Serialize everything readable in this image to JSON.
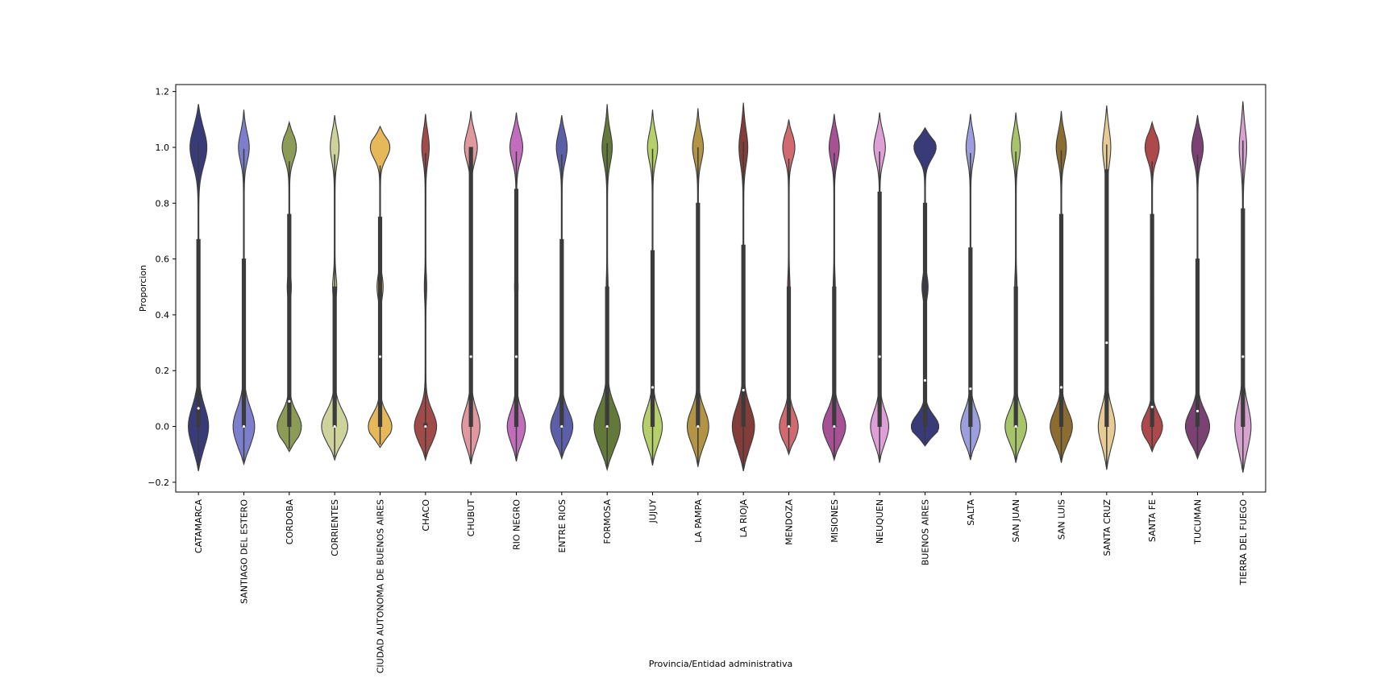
{
  "chart_data": {
    "type": "violin",
    "xlabel": "Provincia/Entidad administrativa",
    "ylabel": "Proporcion",
    "ylim": [
      -0.235,
      1.225
    ],
    "yticks": [
      -0.2,
      0.0,
      0.2,
      0.4,
      0.6,
      0.8,
      1.0,
      1.2
    ],
    "ytick_labels": [
      "−0.2",
      "0.0",
      "0.2",
      "0.4",
      "0.6",
      "0.8",
      "1.0",
      "1.2"
    ],
    "grid": false,
    "categories": [
      "CATAMARCA",
      "SANTIAGO DEL ESTERO",
      "CORDOBA",
      "CORRIENTES",
      "CIUDAD AUTONOMA DE BUENOS AIRES",
      "CHACO",
      "CHUBUT",
      "RIO NEGRO",
      "ENTRE RIOS",
      "FORMOSA",
      "JUJUY",
      "LA PAMPA",
      "LA RIOJA",
      "MENDOZA",
      "MISIONES",
      "NEUQUEN",
      "BUENOS AIRES",
      "SALTA",
      "SAN JUAN",
      "SAN LUIS",
      "SANTA CRUZ",
      "SANTA FE",
      "TUCUMAN",
      "TIERRA DEL FUEGO"
    ],
    "colors": [
      "#393b79",
      "#7b7fcc",
      "#8c9c56",
      "#cdd39a",
      "#e7b85a",
      "#a14a4a",
      "#e0989e",
      "#c26dbc",
      "#5b5fa8",
      "#637939",
      "#b5cf6b",
      "#b29444",
      "#843c39",
      "#d06a70",
      "#a55194",
      "#de9ed6",
      "#393b79",
      "#9c9ede",
      "#a8c46a",
      "#8c6d31",
      "#e7cb94",
      "#ad494a",
      "#7b4173",
      "#d6a2d0"
    ],
    "violins": [
      {
        "min": -0.16,
        "max": 1.155,
        "low_w": 0.145,
        "low_s": 0.07,
        "high_w": 0.12,
        "high_s": 0.065,
        "mid_w": 0.01,
        "q1": 0.0,
        "q3": 0.67,
        "median": 0.065
      },
      {
        "min": -0.135,
        "max": 1.135,
        "low_w": 0.155,
        "low_s": 0.065,
        "high_w": 0.075,
        "high_s": 0.05,
        "mid_w": 0.01,
        "q1": 0.0,
        "q3": 0.6,
        "median": 0.0
      },
      {
        "min": -0.09,
        "max": 1.09,
        "low_w": 0.175,
        "low_s": 0.05,
        "high_w": 0.1,
        "high_s": 0.045,
        "mid_w": 0.025,
        "q1": 0.0,
        "q3": 0.76,
        "median": 0.09
      },
      {
        "min": -0.12,
        "max": 1.115,
        "low_w": 0.19,
        "low_s": 0.055,
        "high_w": 0.06,
        "high_s": 0.05,
        "mid_w": 0.025,
        "q1": 0.0,
        "q3": 0.5,
        "median": 0.0
      },
      {
        "min": -0.075,
        "max": 1.075,
        "low_w": 0.17,
        "low_s": 0.045,
        "high_w": 0.14,
        "high_s": 0.04,
        "mid_w": 0.04,
        "q1": 0.0,
        "q3": 0.75,
        "median": 0.25
      },
      {
        "min": -0.12,
        "max": 1.12,
        "low_w": 0.16,
        "low_s": 0.055,
        "high_w": 0.05,
        "high_s": 0.05,
        "mid_w": 0.012,
        "q1": 0.0,
        "q3": 0.01,
        "median": 0.0
      },
      {
        "min": -0.135,
        "max": 1.13,
        "low_w": 0.13,
        "low_s": 0.06,
        "high_w": 0.09,
        "high_s": 0.05,
        "mid_w": 0.015,
        "q1": 0.0,
        "q3": 1.0,
        "median": 0.25
      },
      {
        "min": -0.125,
        "max": 1.125,
        "low_w": 0.13,
        "low_s": 0.055,
        "high_w": 0.09,
        "high_s": 0.05,
        "mid_w": 0.02,
        "q1": 0.0,
        "q3": 0.85,
        "median": 0.25
      },
      {
        "min": -0.115,
        "max": 1.115,
        "low_w": 0.16,
        "low_s": 0.055,
        "high_w": 0.075,
        "high_s": 0.05,
        "mid_w": 0.01,
        "q1": 0.0,
        "q3": 0.67,
        "median": 0.0
      },
      {
        "min": -0.155,
        "max": 1.155,
        "low_w": 0.19,
        "low_s": 0.07,
        "high_w": 0.07,
        "high_s": 0.055,
        "mid_w": 0.008,
        "q1": 0.0,
        "q3": 0.5,
        "median": 0.0
      },
      {
        "min": -0.14,
        "max": 1.135,
        "low_w": 0.14,
        "low_s": 0.06,
        "high_w": 0.07,
        "high_s": 0.05,
        "mid_w": 0.012,
        "q1": 0.0,
        "q3": 0.63,
        "median": 0.14
      },
      {
        "min": -0.145,
        "max": 1.14,
        "low_w": 0.155,
        "low_s": 0.06,
        "high_w": 0.075,
        "high_s": 0.05,
        "mid_w": 0.01,
        "q1": 0.0,
        "q3": 0.8,
        "median": 0.0
      },
      {
        "min": -0.16,
        "max": 1.16,
        "low_w": 0.16,
        "low_s": 0.07,
        "high_w": 0.06,
        "high_s": 0.06,
        "mid_w": 0.01,
        "q1": 0.0,
        "q3": 0.65,
        "median": 0.13
      },
      {
        "min": -0.1,
        "max": 1.1,
        "low_w": 0.135,
        "low_s": 0.05,
        "high_w": 0.085,
        "high_s": 0.045,
        "mid_w": 0.012,
        "q1": 0.0,
        "q3": 0.5,
        "median": 0.0
      },
      {
        "min": -0.12,
        "max": 1.12,
        "low_w": 0.165,
        "low_s": 0.055,
        "high_w": 0.07,
        "high_s": 0.05,
        "mid_w": 0.01,
        "q1": 0.0,
        "q3": 0.5,
        "median": 0.0
      },
      {
        "min": -0.13,
        "max": 1.125,
        "low_w": 0.13,
        "low_s": 0.055,
        "high_w": 0.08,
        "high_s": 0.05,
        "mid_w": 0.012,
        "q1": 0.0,
        "q3": 0.84,
        "median": 0.25
      },
      {
        "min": -0.07,
        "max": 1.07,
        "low_w": 0.2,
        "low_s": 0.04,
        "high_w": 0.16,
        "high_s": 0.04,
        "mid_w": 0.04,
        "q1": 0.0,
        "q3": 0.8,
        "median": 0.165
      },
      {
        "min": -0.12,
        "max": 1.12,
        "low_w": 0.14,
        "low_s": 0.055,
        "high_w": 0.06,
        "high_s": 0.05,
        "mid_w": 0.01,
        "q1": 0.0,
        "q3": 0.64,
        "median": 0.135
      },
      {
        "min": -0.13,
        "max": 1.125,
        "low_w": 0.155,
        "low_s": 0.055,
        "high_w": 0.06,
        "high_s": 0.05,
        "mid_w": 0.012,
        "q1": 0.0,
        "q3": 0.5,
        "median": 0.0
      },
      {
        "min": -0.13,
        "max": 1.13,
        "low_w": 0.16,
        "low_s": 0.055,
        "high_w": 0.07,
        "high_s": 0.05,
        "mid_w": 0.012,
        "q1": 0.0,
        "q3": 0.76,
        "median": 0.14
      },
      {
        "min": -0.155,
        "max": 1.15,
        "low_w": 0.12,
        "low_s": 0.065,
        "high_w": 0.055,
        "high_s": 0.06,
        "mid_w": 0.01,
        "q1": 0.0,
        "q3": 0.92,
        "median": 0.3
      },
      {
        "min": -0.09,
        "max": 1.09,
        "low_w": 0.15,
        "low_s": 0.045,
        "high_w": 0.1,
        "high_s": 0.045,
        "mid_w": 0.015,
        "q1": 0.0,
        "q3": 0.76,
        "median": 0.07
      },
      {
        "min": -0.115,
        "max": 1.115,
        "low_w": 0.175,
        "low_s": 0.055,
        "high_w": 0.08,
        "high_s": 0.05,
        "mid_w": 0.012,
        "q1": 0.0,
        "q3": 0.6,
        "median": 0.055
      },
      {
        "min": -0.165,
        "max": 1.165,
        "low_w": 0.115,
        "low_s": 0.075,
        "high_w": 0.05,
        "high_s": 0.065,
        "mid_w": 0.012,
        "q1": 0.0,
        "q3": 0.78,
        "median": 0.25
      }
    ]
  }
}
